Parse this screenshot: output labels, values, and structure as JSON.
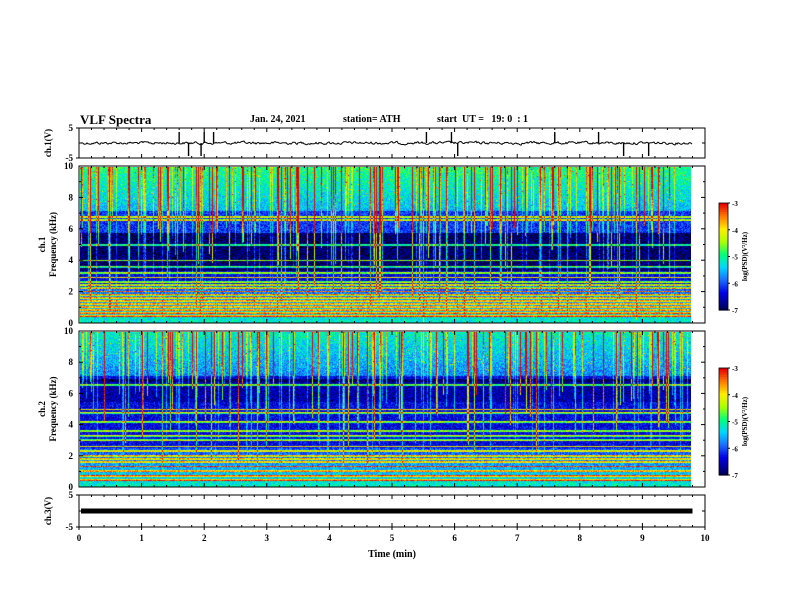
{
  "header": {
    "title": "VLF Spectra",
    "date": "Jan. 24, 2021",
    "station": "station= ATH",
    "start": "start  UT =   19: 0  : 1"
  },
  "colors": {
    "ink": "#000000",
    "background": "#ffffff",
    "colormap": [
      "#000000",
      "#00007a",
      "#0000e6",
      "#1a6cff",
      "#00d7ff",
      "#00ff7a",
      "#aaff00",
      "#ffee00",
      "#ff7a00",
      "#e60000"
    ]
  },
  "chart_data": [
    {
      "type": "line",
      "name": "channel-1-waveform",
      "ylabel": "ch.1(V)",
      "ylim": [
        -5,
        5
      ],
      "yticks": [
        "5",
        "-5"
      ],
      "xlim": [
        0,
        10
      ],
      "baseline_v": 0,
      "spikes_min": [
        1.6,
        1.75,
        1.95,
        2.0,
        2.15,
        5.55,
        5.95,
        6.05,
        7.6,
        8.3,
        8.7,
        9.1
      ],
      "series_color": "#000000"
    },
    {
      "type": "heatmap",
      "name": "channel-1-spectrogram",
      "ylabel": "ch.1 Frequency (kHz)",
      "ylim": [
        0,
        10
      ],
      "yticks": [
        "0",
        "2",
        "4",
        "6",
        "8",
        "10"
      ],
      "xlim": [
        0,
        10
      ],
      "data_end_min": 9.8,
      "colorbar": {
        "label": "log(PSD)(V²/Hz)",
        "range": [
          -7,
          -3
        ],
        "ticks": [
          "-3",
          "-4",
          "-5",
          "-6",
          "-7"
        ]
      },
      "bright_lines_khz": [
        0.4,
        0.6,
        0.8,
        1.0,
        1.2,
        1.4,
        1.6,
        1.8,
        2.0,
        2.2,
        2.4,
        2.6,
        2.9,
        3.2,
        3.6,
        4.0,
        5.0,
        6.6,
        6.8
      ],
      "dark_band_khz": [
        3.3,
        5.8
      ]
    },
    {
      "type": "heatmap",
      "name": "channel-2-spectrogram",
      "ylabel": "ch.2 Frequency (kHz)",
      "ylim": [
        0,
        10
      ],
      "yticks": [
        "0",
        "2",
        "4",
        "6",
        "8",
        "10"
      ],
      "xlim": [
        0,
        10
      ],
      "data_end_min": 9.8,
      "colorbar": {
        "label": "log(PSD)(V²/Hz)",
        "range": [
          -7,
          -3
        ],
        "ticks": [
          "-3",
          "-4",
          "-5",
          "-6",
          "-7"
        ]
      },
      "bright_lines_khz": [
        0.4,
        0.7,
        1.0,
        1.3,
        1.6,
        1.8,
        2.0,
        2.3,
        2.6,
        3.0,
        3.3,
        3.6,
        4.2,
        4.8,
        5.0,
        6.6
      ],
      "dark_band_khz": [
        5.5,
        7.0
      ]
    },
    {
      "type": "line",
      "name": "channel-3-waveform",
      "ylabel": "ch.3(V)",
      "ylim": [
        -5,
        5
      ],
      "yticks": [
        "5",
        "-5"
      ],
      "xlim": [
        0,
        10
      ],
      "baseline_v": 0,
      "series_color": "#000000"
    }
  ],
  "xaxis": {
    "label": "Time (min)",
    "ticks": [
      "0",
      "1",
      "2",
      "3",
      "4",
      "5",
      "6",
      "7",
      "8",
      "9",
      "10"
    ]
  }
}
